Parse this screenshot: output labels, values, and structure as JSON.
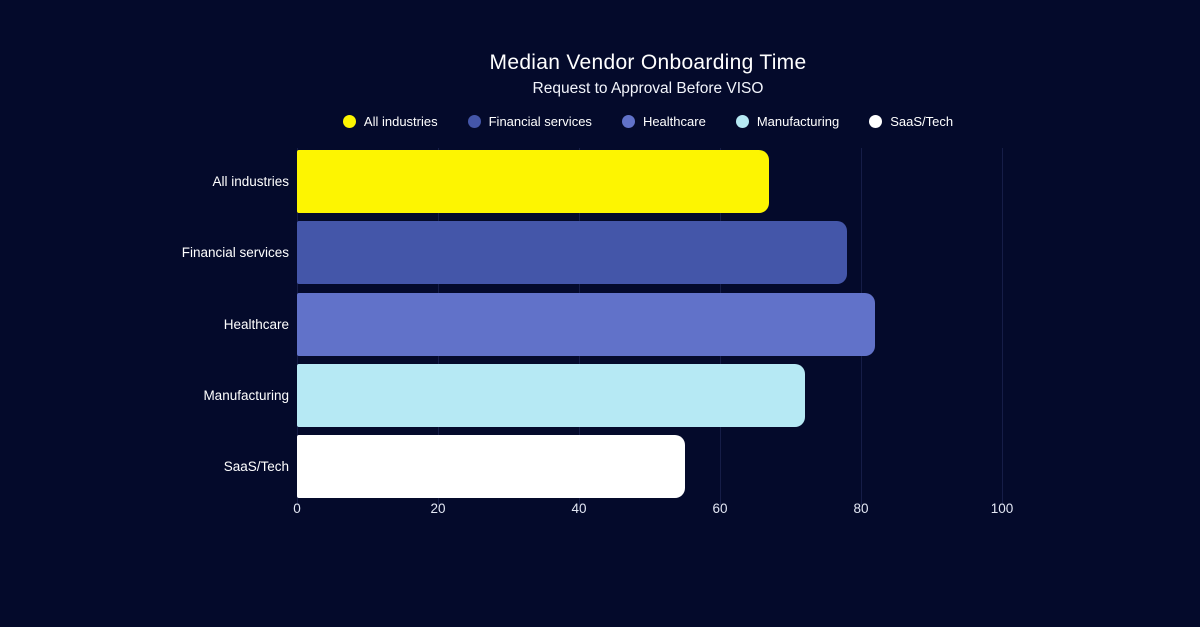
{
  "page": {
    "background_color": "#040a2b",
    "gridline_color": "#161d47"
  },
  "header": {
    "title": "Median Vendor Onboarding Time",
    "subtitle": "Request to Approval Before VISO"
  },
  "legend": {
    "position": "top",
    "items": [
      {
        "label": "All industries",
        "color": "#fdf501"
      },
      {
        "label": "Financial services",
        "color": "#4456a9"
      },
      {
        "label": "Healthcare",
        "color": "#6172c9"
      },
      {
        "label": "Manufacturing",
        "color": "#b6e9f4"
      },
      {
        "label": "SaaS/Tech",
        "color": "#ffffff"
      }
    ]
  },
  "chart_data": {
    "type": "bar",
    "orientation": "horizontal",
    "title": "Median Vendor Onboarding Time",
    "subtitle": "Request to Approval Before VISO",
    "categories": [
      "All industries",
      "Financial services",
      "Healthcare",
      "Manufacturing",
      "SaaS/Tech"
    ],
    "values": [
      67,
      78,
      82,
      72,
      55
    ],
    "bar_colors": [
      "#fdf501",
      "#4456a9",
      "#6172c9",
      "#b6e9f4",
      "#ffffff"
    ],
    "xlabel": "",
    "ylabel": "",
    "xlim": [
      0,
      100
    ],
    "x_ticks": [
      0,
      20,
      40,
      60,
      80,
      100
    ],
    "grid": "vertical",
    "legend_position": "top"
  }
}
